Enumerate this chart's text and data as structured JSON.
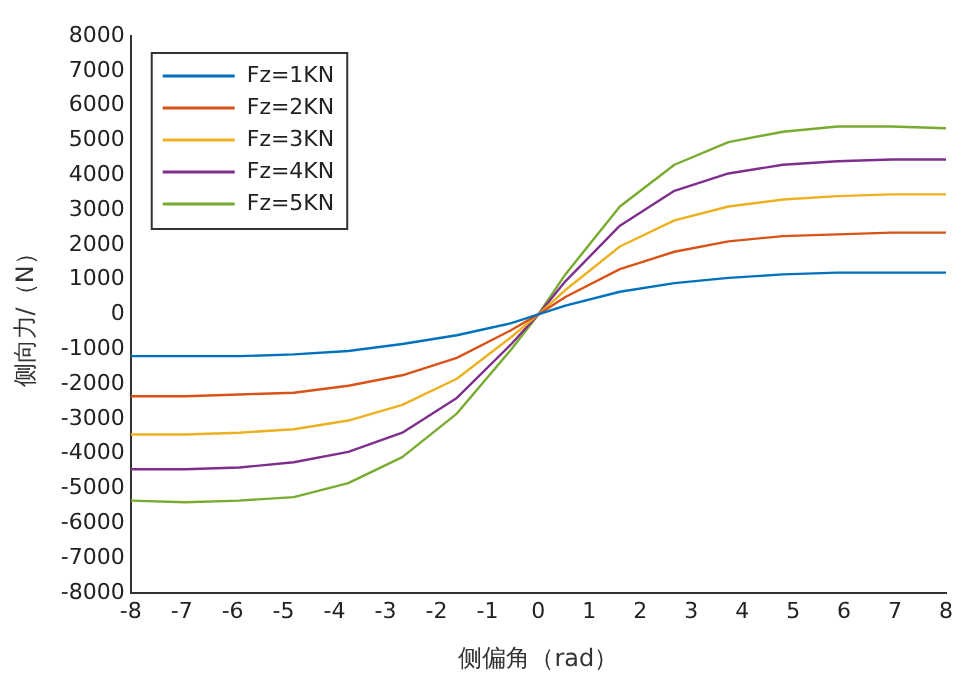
{
  "chart_data": {
    "type": "line",
    "xlabel": "侧偏角（rad）",
    "ylabel": "侧向力/（N）",
    "x": [
      -8,
      -6.93,
      -5.87,
      -4.8,
      -3.73,
      -2.67,
      -1.6,
      -0.53,
      0,
      0.53,
      1.6,
      2.67,
      3.73,
      4.8,
      5.87,
      6.93,
      8
    ],
    "xlim": [
      -8,
      8
    ],
    "xticks": [
      -8,
      -7,
      -6,
      -5,
      -4,
      -3,
      -2,
      -1,
      0,
      1,
      2,
      3,
      4,
      5,
      6,
      7,
      8
    ],
    "ylim": [
      -8000,
      8000
    ],
    "yticks": [
      -8000,
      -7000,
      -6000,
      -5000,
      -4000,
      -3000,
      -2000,
      -1000,
      0,
      1000,
      2000,
      3000,
      4000,
      5000,
      6000,
      7000,
      8000
    ],
    "grid": false,
    "legend": "top left",
    "marker": "none",
    "line_style": "solid",
    "series": [
      {
        "name": "Fz=1KN",
        "color": "#0072bd",
        "values": [
          -1200,
          -1200,
          -1200,
          -1150,
          -1050,
          -850,
          -600,
          -250,
          0,
          250,
          650,
          900,
          1050,
          1150,
          1200,
          1200,
          1200
        ]
      },
      {
        "name": "Fz=2KN",
        "color": "#d95319",
        "values": [
          -2350,
          -2350,
          -2300,
          -2250,
          -2050,
          -1750,
          -1250,
          -450,
          0,
          500,
          1300,
          1800,
          2100,
          2250,
          2300,
          2350,
          2350
        ]
      },
      {
        "name": "Fz=3KN",
        "color": "#edb120",
        "values": [
          -3450,
          -3450,
          -3400,
          -3300,
          -3050,
          -2600,
          -1850,
          -650,
          0,
          700,
          1950,
          2700,
          3100,
          3300,
          3400,
          3450,
          3450
        ]
      },
      {
        "name": "Fz=4KN",
        "color": "#7e2f8e",
        "values": [
          -4450,
          -4450,
          -4400,
          -4250,
          -3950,
          -3400,
          -2400,
          -850,
          0,
          950,
          2550,
          3550,
          4050,
          4300,
          4400,
          4450,
          4450
        ]
      },
      {
        "name": "Fz=5KN",
        "color": "#77ac30",
        "values": [
          -5350,
          -5400,
          -5350,
          -5250,
          -4850,
          -4100,
          -2850,
          -1000,
          0,
          1150,
          3100,
          4300,
          4950,
          5250,
          5400,
          5400,
          5350
        ]
      }
    ]
  }
}
